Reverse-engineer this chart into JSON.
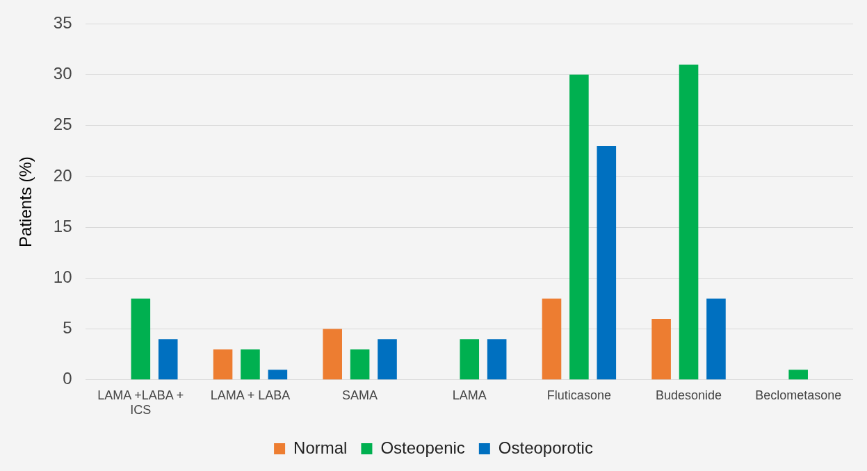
{
  "chart_data": {
    "type": "bar",
    "ylabel": "Patients (%)",
    "categories": [
      "LAMA +LABA + ICS",
      "LAMA + LABA",
      "SAMA",
      "LAMA",
      "Fluticasone",
      "Budesonide",
      "Beclometasone"
    ],
    "series": [
      {
        "name": "Normal",
        "color": "#ed7d31",
        "values": [
          0,
          3,
          5,
          0,
          8,
          6,
          0
        ]
      },
      {
        "name": "Osteopenic",
        "color": "#00b050",
        "values": [
          8,
          3,
          3,
          4,
          30,
          31,
          1
        ]
      },
      {
        "name": "Osteoporotic",
        "color": "#0070c0",
        "values": [
          4,
          1,
          4,
          4,
          23,
          8,
          0
        ]
      }
    ],
    "ylim": [
      0,
      35
    ],
    "yticks": [
      0,
      5,
      10,
      15,
      20,
      25,
      30,
      35
    ],
    "grid": "y",
    "legend": "bottom"
  }
}
